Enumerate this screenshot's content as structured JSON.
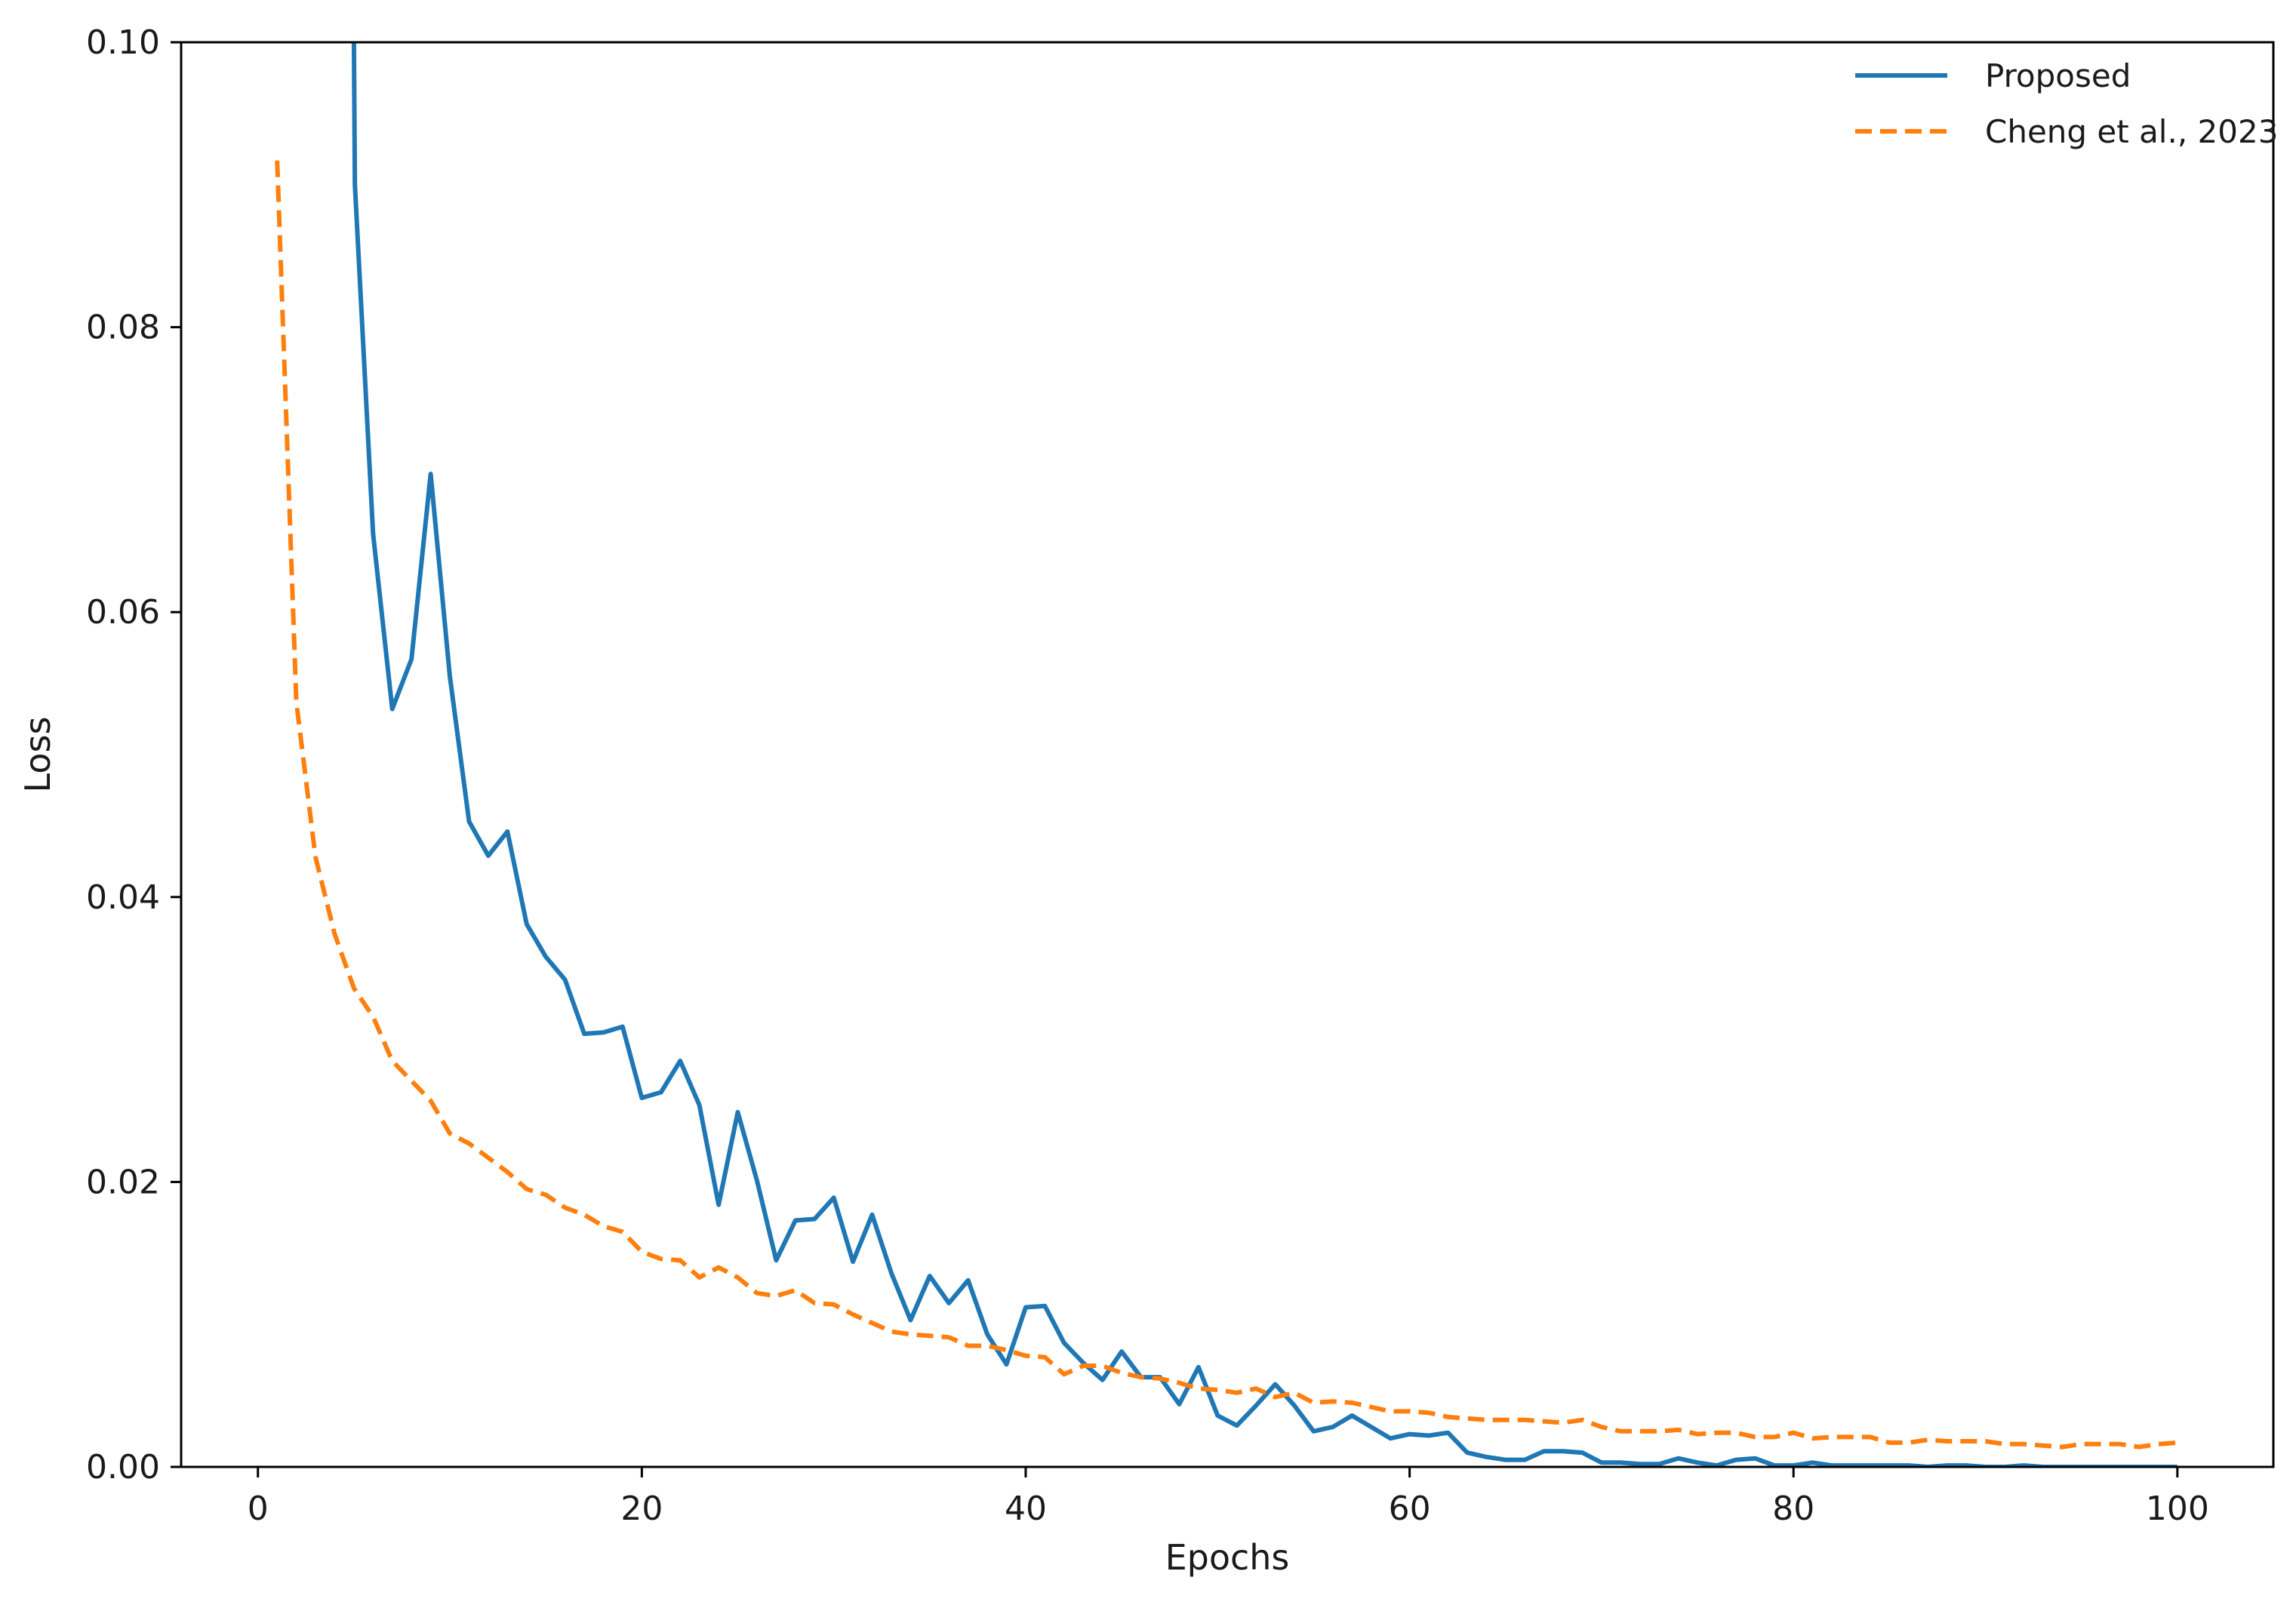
{
  "chart_data": {
    "type": "line",
    "title": "",
    "xlabel": "Epochs",
    "ylabel": "Loss",
    "xlim": [
      -4,
      105
    ],
    "ylim": [
      0,
      0.1
    ],
    "xticks": [
      0,
      20,
      40,
      60,
      80,
      100
    ],
    "yticks": [
      0.0,
      0.02,
      0.04,
      0.06,
      0.08,
      0.1
    ],
    "xtick_labels": [
      "0",
      "20",
      "40",
      "60",
      "80",
      "100"
    ],
    "ytick_labels": [
      "0.00",
      "0.02",
      "0.04",
      "0.06",
      "0.08",
      "0.10"
    ],
    "grid": false,
    "legend": {
      "position": "top-right"
    },
    "series": [
      {
        "name": "Proposed",
        "color": "#1f77b4",
        "style": "solid",
        "x": [
          5,
          5.05,
          6,
          7,
          8,
          9,
          10,
          11,
          12,
          13,
          14,
          15,
          16,
          17,
          18,
          19,
          20,
          21,
          22,
          23,
          24,
          25,
          26,
          27,
          28,
          29,
          30,
          31,
          32,
          33,
          34,
          35,
          36,
          37,
          38,
          39,
          40,
          41,
          42,
          43,
          44,
          45,
          46,
          47,
          48,
          49,
          50,
          51,
          52,
          53,
          54,
          55,
          56,
          57,
          58,
          59,
          60,
          61,
          62,
          63,
          64,
          65,
          66,
          67,
          68,
          69,
          70,
          71,
          72,
          73,
          74,
          75,
          76,
          77,
          78,
          79,
          80,
          81,
          82,
          83,
          84,
          85,
          86,
          87,
          88,
          89,
          90,
          91,
          92,
          93,
          94,
          95,
          96,
          97,
          98,
          99,
          100
        ],
        "y": [
          0.1,
          0.09,
          0.0655,
          0.0532,
          0.0567,
          0.0697,
          0.0555,
          0.0453,
          0.0429,
          0.0446,
          0.0381,
          0.0358,
          0.0342,
          0.0304,
          0.0305,
          0.0309,
          0.0259,
          0.0263,
          0.0285,
          0.0254,
          0.0184,
          0.0249,
          0.0201,
          0.0145,
          0.0173,
          0.0174,
          0.0189,
          0.0144,
          0.0177,
          0.0136,
          0.0103,
          0.0134,
          0.0115,
          0.0131,
          0.0093,
          0.0072,
          0.0112,
          0.0113,
          0.0087,
          0.0073,
          0.0061,
          0.0081,
          0.0063,
          0.0063,
          0.0044,
          0.007,
          0.0036,
          0.0029,
          0.0043,
          0.0058,
          0.0043,
          0.0025,
          0.0028,
          0.0036,
          0.0028,
          0.002,
          0.0023,
          0.0022,
          0.0024,
          0.001,
          0.0007,
          0.0005,
          0.0005,
          0.0011,
          0.0011,
          0.001,
          0.0003,
          0.0003,
          0.0002,
          0.0002,
          0.0006,
          0.0003,
          0.0001,
          0.0005,
          0.0006,
          0.0001,
          0.0001,
          0.0003,
          0.0001,
          0.0001,
          0.0001,
          0.0001,
          0.0001,
          0.0,
          0.0001,
          0.0001,
          0.0,
          0.0,
          0.0001,
          0.0,
          0.0,
          0.0,
          0.0,
          0.0,
          0.0,
          0.0,
          0.0
        ]
      },
      {
        "name": "Cheng et al., 2023",
        "color": "#ff7f0e",
        "style": "dashed",
        "x": [
          1,
          2,
          3,
          4,
          5,
          6,
          7,
          8,
          9,
          10,
          11,
          12,
          13,
          14,
          15,
          16,
          17,
          18,
          19,
          20,
          21,
          22,
          23,
          24,
          25,
          26,
          27,
          28,
          29,
          30,
          31,
          32,
          33,
          34,
          35,
          36,
          37,
          38,
          39,
          40,
          41,
          42,
          43,
          44,
          45,
          46,
          47,
          48,
          49,
          50,
          51,
          52,
          53,
          54,
          55,
          56,
          57,
          58,
          59,
          60,
          61,
          62,
          63,
          64,
          65,
          66,
          67,
          68,
          69,
          70,
          71,
          72,
          73,
          74,
          75,
          76,
          77,
          78,
          79,
          80,
          81,
          82,
          83,
          84,
          85,
          86,
          87,
          88,
          89,
          90,
          91,
          92,
          93,
          94,
          95,
          96,
          97,
          98,
          99,
          100
        ],
        "y": [
          0.0917,
          0.0537,
          0.0428,
          0.0374,
          0.0336,
          0.0316,
          0.0285,
          0.0271,
          0.0257,
          0.0234,
          0.0227,
          0.0217,
          0.0207,
          0.0195,
          0.0191,
          0.0182,
          0.0177,
          0.0169,
          0.0165,
          0.0151,
          0.0146,
          0.0145,
          0.0133,
          0.014,
          0.0133,
          0.0122,
          0.012,
          0.0124,
          0.0115,
          0.0114,
          0.0107,
          0.0101,
          0.0095,
          0.0093,
          0.0092,
          0.0091,
          0.0085,
          0.0085,
          0.0082,
          0.0078,
          0.0077,
          0.0065,
          0.0071,
          0.0071,
          0.0066,
          0.0063,
          0.0062,
          0.0059,
          0.0055,
          0.0054,
          0.0052,
          0.0055,
          0.0049,
          0.0052,
          0.0045,
          0.0046,
          0.0045,
          0.0042,
          0.0039,
          0.0039,
          0.0038,
          0.0035,
          0.0034,
          0.0033,
          0.0033,
          0.0033,
          0.0032,
          0.0031,
          0.0033,
          0.0028,
          0.0025,
          0.0025,
          0.0025,
          0.0026,
          0.0023,
          0.0024,
          0.0024,
          0.0021,
          0.0021,
          0.0024,
          0.002,
          0.0021,
          0.0021,
          0.0021,
          0.0017,
          0.0017,
          0.0019,
          0.0018,
          0.0018,
          0.0018,
          0.0016,
          0.0016,
          0.0015,
          0.0014,
          0.0016,
          0.0016,
          0.0016,
          0.0014,
          0.0016,
          0.0017
        ]
      }
    ]
  }
}
